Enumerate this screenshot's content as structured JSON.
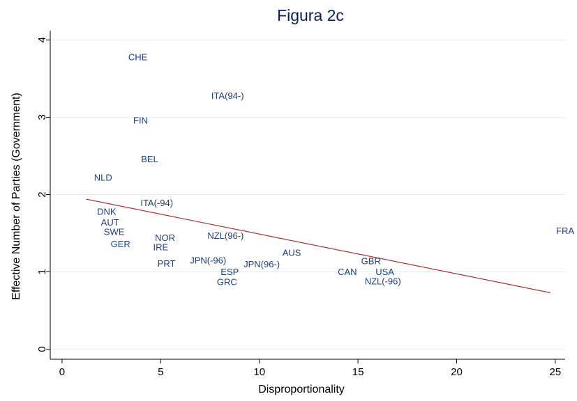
{
  "chart_data": {
    "type": "scatter",
    "title": "Figura 2c",
    "x_label": "Disproportionality",
    "y_label": "Effective Number of Parties (Government)",
    "labels": [
      "CHE",
      "ITA(94-)",
      "FIN",
      "BEL",
      "NLD",
      "ITA(-94)",
      "DNK",
      "AUT",
      "SWE",
      "GER",
      "NOR",
      "IRE",
      "PRT",
      "NZL(96-)",
      "JPN(-96)",
      "ESP",
      "GRC",
      "JPN(96-)",
      "AUS",
      "GBR",
      "CAN",
      "USA",
      "NZL(-96)",
      "FRA"
    ],
    "x": [
      3.84,
      8.39,
      3.98,
      4.44,
      2.08,
      4.8,
      2.26,
      2.43,
      2.64,
      2.96,
      5.22,
      5.0,
      5.29,
      8.29,
      7.4,
      8.5,
      8.36,
      10.12,
      11.64,
      15.66,
      14.46,
      16.36,
      16.26,
      25.5
    ],
    "y": [
      3.77,
      3.27,
      2.95,
      2.45,
      2.21,
      1.88,
      1.77,
      1.63,
      1.51,
      1.35,
      1.43,
      1.31,
      1.1,
      1.46,
      1.14,
      0.99,
      0.86,
      1.09,
      1.24,
      1.13,
      0.99,
      0.99,
      0.87,
      1.52
    ],
    "color": "#1f3f7a",
    "fit": {
      "x": [
        1.23,
        24.75
      ],
      "y": [
        1.94,
        0.73
      ],
      "color": "#a83232"
    },
    "xlim": [
      -0.6,
      25.5
    ],
    "ylim": [
      -0.13,
      4.12
    ],
    "xticks": [
      0,
      5,
      10,
      15,
      20,
      25
    ],
    "yticks": [
      0,
      1,
      2,
      3,
      4
    ],
    "grid": true
  }
}
